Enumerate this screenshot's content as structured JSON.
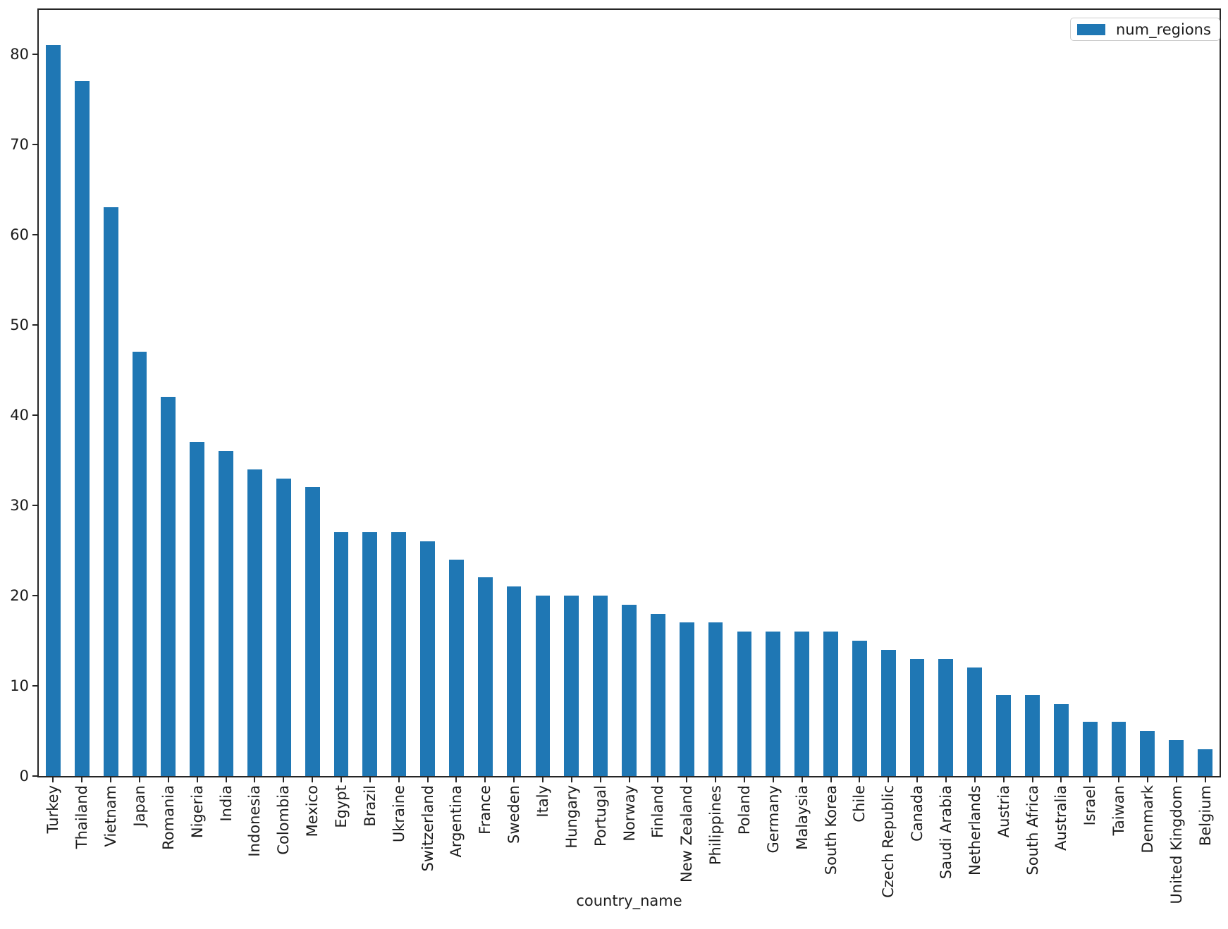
{
  "chart_data": {
    "type": "bar",
    "title": "",
    "xlabel": "country_name",
    "ylabel": "",
    "categories": [
      "Turkey",
      "Thailand",
      "Vietnam",
      "Japan",
      "Romania",
      "Nigeria",
      "India",
      "Indonesia",
      "Colombia",
      "Mexico",
      "Egypt",
      "Brazil",
      "Ukraine",
      "Switzerland",
      "Argentina",
      "France",
      "Sweden",
      "Italy",
      "Hungary",
      "Portugal",
      "Norway",
      "Finland",
      "New Zealand",
      "Philippines",
      "Poland",
      "Germany",
      "Malaysia",
      "South Korea",
      "Chile",
      "Czech Republic",
      "Canada",
      "Saudi Arabia",
      "Netherlands",
      "Austria",
      "South Africa",
      "Australia",
      "Israel",
      "Taiwan",
      "Denmark",
      "United Kingdom",
      "Belgium"
    ],
    "series": [
      {
        "name": "num_regions",
        "values": [
          81,
          77,
          63,
          47,
          42,
          37,
          36,
          34,
          33,
          32,
          27,
          27,
          27,
          26,
          24,
          22,
          21,
          20,
          20,
          20,
          19,
          18,
          17,
          17,
          16,
          16,
          16,
          16,
          15,
          14,
          13,
          13,
          12,
          9,
          9,
          8,
          6,
          6,
          5,
          4,
          3
        ]
      }
    ],
    "yticks": [
      0,
      10,
      20,
      30,
      40,
      50,
      60,
      70,
      80
    ],
    "ylim": [
      0,
      84.9
    ],
    "grid": false,
    "legend_position": "upper right",
    "bar_color": "#1f77b4",
    "axis_color": "#262626",
    "text_color": "#1c1c1c"
  }
}
